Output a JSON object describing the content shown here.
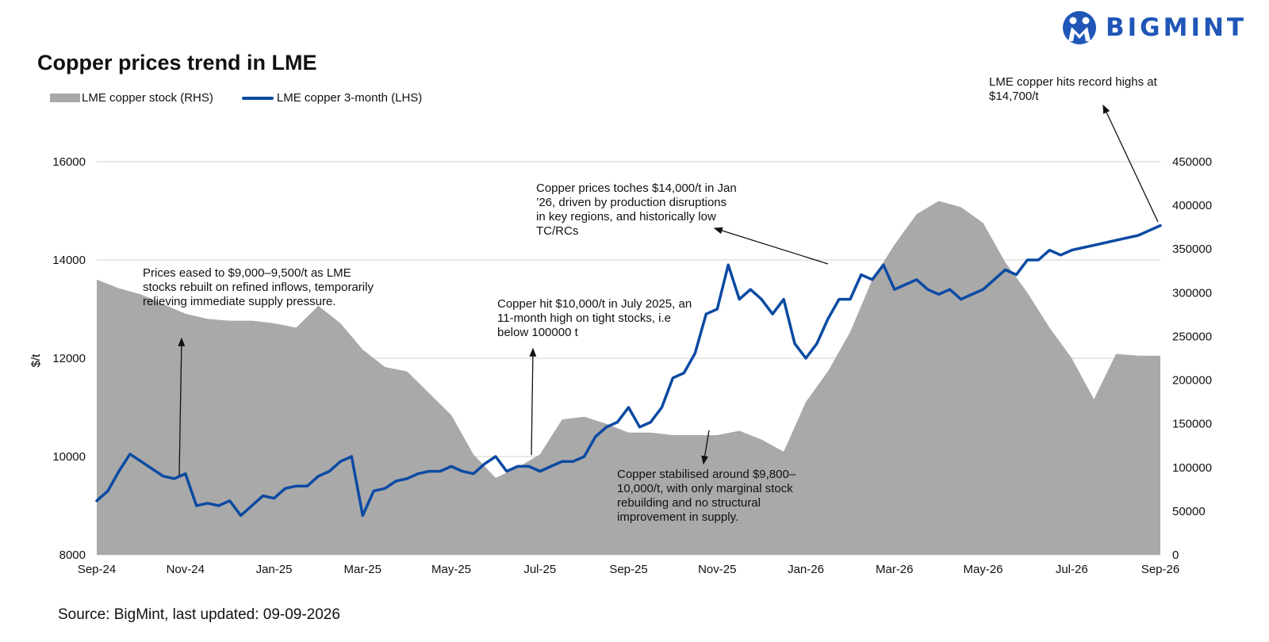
{
  "title": "Copper prices trend in LME",
  "source": "Source: BigMint, last updated: 09-09-2026",
  "logo": {
    "text": "BIGMINT",
    "color": "#1f56b8"
  },
  "legend": {
    "stock_label": "LME copper stock (RHS)",
    "price_label": "LME copper 3-month (LHS)"
  },
  "annotations": {
    "a1": "Prices eased to $9,000–9,500/t as LME stocks rebuilt on refined inflows, temporarily relieving immediate supply pressure.",
    "a2": "Copper hit $10,000/t in July 2025, an 11-month high on tight stocks, i.e below 100000 t",
    "a3": "Copper prices toches $14,000/t in Jan ’26, driven by production disruptions in key regions, and historically low TC/RCs",
    "a4": "Copper stabilised around $9,800–10,000/t, with only marginal stock rebuilding and no structural improvement in supply.",
    "a5": "LME copper hits record highs at $14,700/t"
  },
  "chart_data": {
    "type": "line",
    "ylabel": "$/t",
    "ylim": [
      8000,
      16000
    ],
    "y2lim": [
      0,
      450000
    ],
    "yticks": [
      8000,
      10000,
      12000,
      14000,
      16000
    ],
    "y2ticks": [
      0,
      50000,
      100000,
      150000,
      200000,
      250000,
      300000,
      350000,
      400000,
      450000
    ],
    "xlabels": [
      "Sep-24",
      "Nov-24",
      "Jan-25",
      "Mar-25",
      "May-25",
      "Jul-25",
      "Sep-25",
      "Nov-25",
      "Jan-26",
      "Mar-26",
      "May-26",
      "Jul-26",
      "Sep-26"
    ],
    "grid": true,
    "colors": {
      "stock": "#a9a9a9",
      "price": "#0b4aa2"
    },
    "series": [
      {
        "name": "LME copper stock (RHS)",
        "axis": "right",
        "x": [
          0,
          0.5,
          1,
          1.5,
          2,
          2.5,
          3,
          3.5,
          4,
          4.5,
          5,
          5.5,
          6,
          6.5,
          7,
          7.5,
          8,
          8.5,
          9,
          9.5,
          10,
          10.5,
          11,
          11.5,
          12,
          12.5,
          13,
          13.5,
          14,
          14.5,
          15,
          15.5,
          16,
          16.5,
          17,
          17.5,
          18,
          18.5,
          19,
          19.5,
          20,
          20.5,
          21,
          21.5,
          22,
          22.5,
          23,
          23.5,
          24
        ],
        "values": [
          315000,
          305000,
          298000,
          287000,
          276000,
          270000,
          268000,
          268000,
          265000,
          260000,
          285000,
          265000,
          235000,
          215000,
          210000,
          185000,
          160000,
          115000,
          88000,
          100000,
          115000,
          155000,
          158000,
          150000,
          140000,
          140000,
          137000,
          137000,
          137000,
          142000,
          132000,
          118000,
          175000,
          210000,
          255000,
          315000,
          355000,
          390000,
          405000,
          398000,
          380000,
          335000,
          300000,
          260000,
          225000,
          178000,
          230000,
          228000,
          228000
        ]
      },
      {
        "name": "LME copper 3-month (LHS)",
        "axis": "left",
        "x": [
          0,
          0.25,
          0.5,
          0.75,
          1,
          1.25,
          1.5,
          1.75,
          2,
          2.25,
          2.5,
          2.75,
          3,
          3.25,
          3.5,
          3.75,
          4,
          4.25,
          4.5,
          4.75,
          5,
          5.25,
          5.5,
          5.75,
          6,
          6.25,
          6.5,
          6.75,
          7,
          7.25,
          7.5,
          7.75,
          8,
          8.25,
          8.5,
          8.75,
          9,
          9.25,
          9.5,
          9.75,
          10,
          10.25,
          10.5,
          10.75,
          11,
          11.25,
          11.5,
          11.75,
          12,
          12.25,
          12.5,
          12.75,
          13,
          13.25,
          13.5,
          13.75,
          14,
          14.25,
          14.5,
          14.75,
          15,
          15.25,
          15.5,
          15.75,
          16,
          16.25,
          16.5,
          16.75,
          17,
          17.25,
          17.5,
          17.75,
          18,
          18.25,
          18.5,
          18.75,
          19,
          19.25,
          19.5,
          19.75,
          20,
          20.25,
          20.5,
          20.75,
          21,
          21.25,
          21.5,
          21.75,
          22,
          22.25,
          22.5,
          22.75,
          23,
          23.25,
          23.5,
          23.75,
          24
        ],
        "values": [
          9100,
          9300,
          9700,
          10050,
          9900,
          9750,
          9600,
          9550,
          9650,
          9000,
          9050,
          9000,
          9100,
          8800,
          9000,
          9200,
          9150,
          9350,
          9400,
          9400,
          9600,
          9700,
          9900,
          10000,
          8800,
          9300,
          9350,
          9500,
          9550,
          9650,
          9700,
          9700,
          9800,
          9700,
          9650,
          9850,
          10000,
          9700,
          9800,
          9800,
          9700,
          9800,
          9900,
          9900,
          10000,
          10400,
          10600,
          10700,
          11000,
          10600,
          10700,
          11000,
          11600,
          11700,
          12100,
          12900,
          13000,
          13900,
          13200,
          13400,
          13200,
          12900,
          13200,
          12300,
          12000,
          12300,
          12800,
          13200,
          13200,
          13700,
          13600,
          13900,
          13400,
          13500,
          13600,
          13400,
          13300,
          13400,
          13200,
          13300,
          13400,
          13600,
          13800,
          13700,
          14000,
          14000,
          14200,
          14100,
          14200,
          14250,
          14300,
          14350,
          14400,
          14450,
          14500,
          14600,
          14700
        ]
      }
    ]
  }
}
